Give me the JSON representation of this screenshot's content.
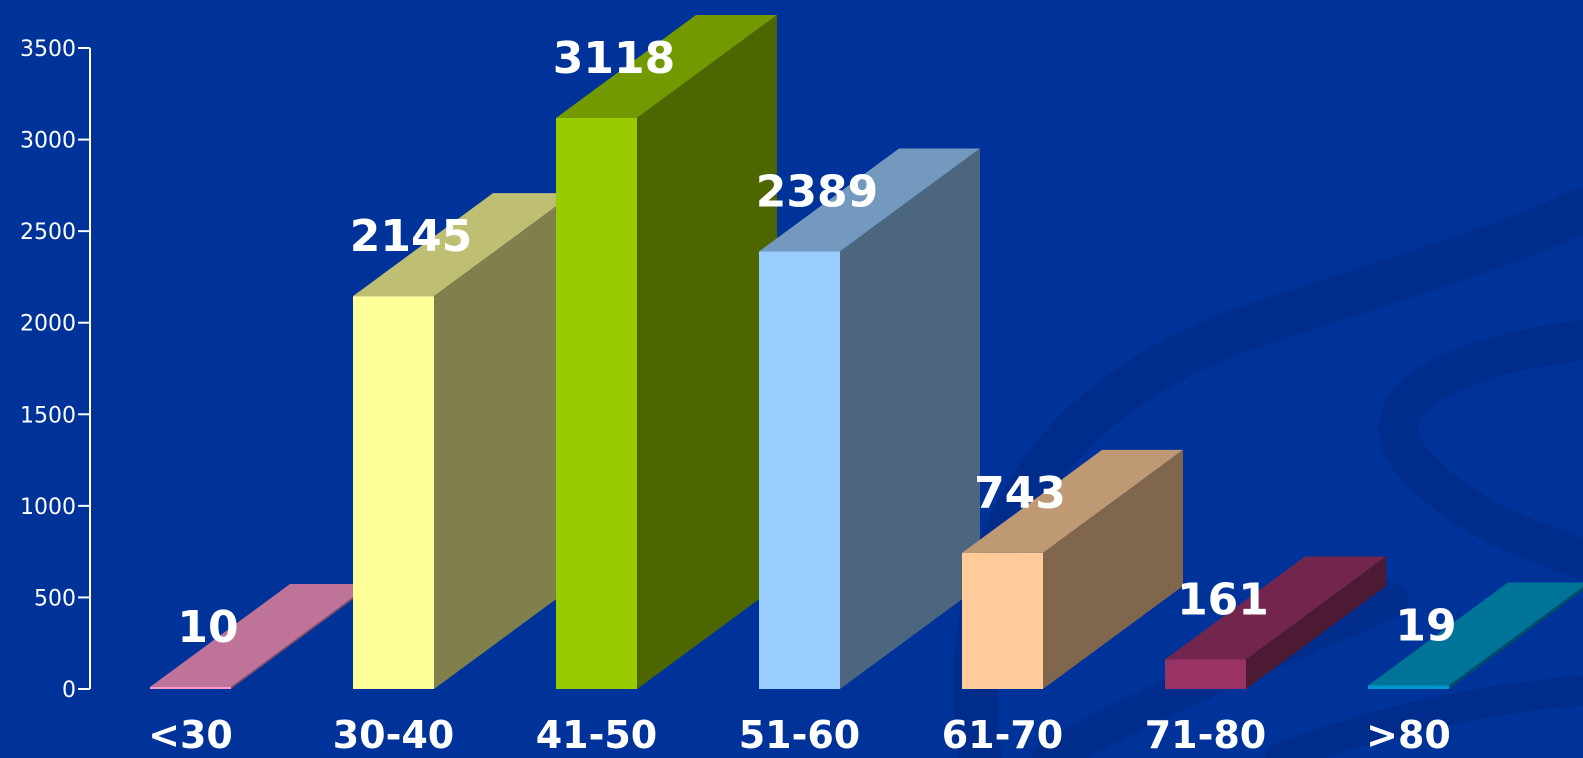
{
  "chart_data": {
    "type": "bar",
    "style": "3d",
    "title": "",
    "xlabel": "",
    "ylabel": "",
    "ylim": [
      0,
      3500
    ],
    "yticks": [
      0,
      500,
      1000,
      1500,
      2000,
      2500,
      3000,
      3500
    ],
    "categories": [
      "<30",
      "30-40",
      "41-50",
      "51-60",
      "61-70",
      "71-80",
      ">80"
    ],
    "values": [
      10,
      2145,
      3118,
      2389,
      743,
      161,
      19
    ],
    "value_labels": [
      "10",
      "2145",
      "3118",
      "2389",
      "743",
      "161",
      "19"
    ],
    "colors": [
      "#ff99cc",
      "#ffff99",
      "#99cc00",
      "#99ccff",
      "#ffcc99",
      "#993366",
      "#0099cc"
    ],
    "grid": false,
    "legend": "none"
  },
  "colors": {
    "background": "#00339a",
    "swirl": "#002d8c",
    "axis": "#ffffff"
  }
}
